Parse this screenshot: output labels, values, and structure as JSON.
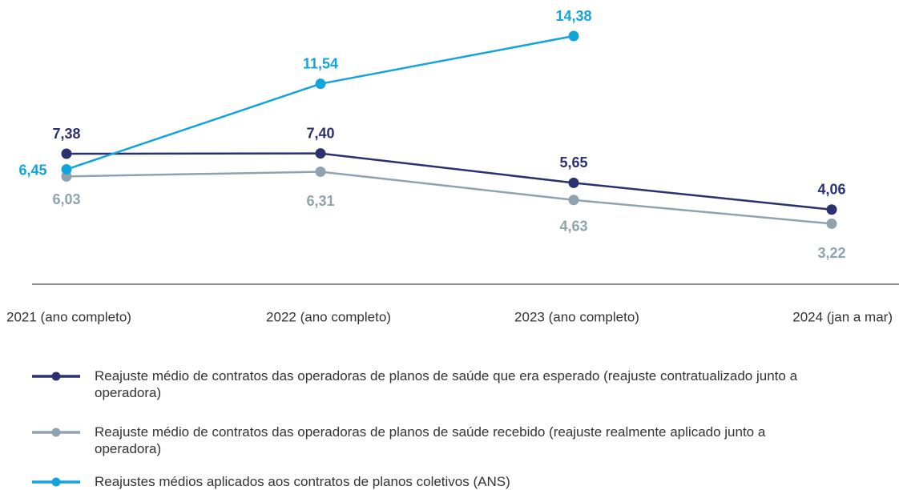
{
  "chart_data": {
    "type": "line",
    "categories": [
      "2021 (ano completo)",
      "2022 (ano completo)",
      "2023 (ano completo)",
      "2024 (jan a mar)"
    ],
    "series": [
      {
        "name": "Reajuste médio de contratos das operadoras de planos de saúde que era esperado (reajuste contratualizado junto a operadora)",
        "color": "#2b3170",
        "values": [
          7.38,
          7.4,
          5.65,
          4.06
        ],
        "value_labels": [
          "7,38",
          "7,40",
          "5,65",
          "4,06"
        ]
      },
      {
        "name": "Reajuste médio de contratos das operadoras de planos de saúde recebido (reajuste realmente aplicado junto a operadora)",
        "color": "#8fa3ae",
        "values": [
          6.03,
          6.31,
          4.63,
          3.22
        ],
        "value_labels": [
          "6,03",
          "6,31",
          "4,63",
          "3,22"
        ]
      },
      {
        "name": "Reajustes médios aplicados aos contratos de planos coletivos (ANS)",
        "color": "#12a4dc",
        "values": [
          6.45,
          11.54,
          14.38,
          null
        ],
        "value_labels": [
          "6,45",
          "11,54",
          "14,38",
          null
        ]
      }
    ],
    "ylim": [
      2,
      15
    ]
  }
}
